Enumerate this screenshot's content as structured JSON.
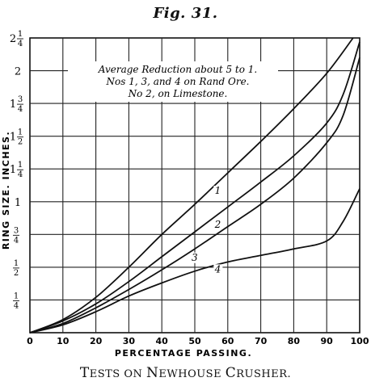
{
  "figure": {
    "title": "Fig. 31.",
    "caption": "Tests on Newhouse Crusher.",
    "caption_parts": [
      {
        "cap": "T",
        "rest": "ESTS"
      },
      {
        "cap": "",
        "rest": " ON "
      },
      {
        "cap": "N",
        "rest": "EWHOUSE"
      },
      {
        "cap": "",
        "rest": " "
      },
      {
        "cap": "C",
        "rest": "RUSHER"
      },
      {
        "cap": "",
        "rest": "."
      }
    ]
  },
  "chart_data": {
    "type": "line",
    "title": "Fig. 31.",
    "xlabel": "PERCENTAGE PASSING.",
    "ylabel": "RING SIZE. INCHES.",
    "xlim": [
      0,
      100
    ],
    "ylim": [
      0,
      2.25
    ],
    "grid": true,
    "x_ticks": [
      "0",
      "10",
      "20",
      "30",
      "40",
      "50",
      "60",
      "70",
      "80",
      "90",
      "100"
    ],
    "y_ticks": [
      {
        "value": 0.25,
        "whole": "",
        "frac_num": "1",
        "frac_den": "4"
      },
      {
        "value": 0.5,
        "whole": "",
        "frac_num": "1",
        "frac_den": "2"
      },
      {
        "value": 0.75,
        "whole": "",
        "frac_num": "3",
        "frac_den": "4"
      },
      {
        "value": 1.0,
        "whole": "1",
        "frac_num": "",
        "frac_den": ""
      },
      {
        "value": 1.25,
        "whole": "1",
        "frac_num": "1",
        "frac_den": "4"
      },
      {
        "value": 1.5,
        "whole": "1",
        "frac_num": "1",
        "frac_den": "2"
      },
      {
        "value": 1.75,
        "whole": "1",
        "frac_num": "3",
        "frac_den": "4"
      },
      {
        "value": 2.0,
        "whole": "2",
        "frac_num": "",
        "frac_den": ""
      },
      {
        "value": 2.25,
        "whole": "2",
        "frac_num": "1",
        "frac_den": "4"
      }
    ],
    "annotation": [
      "Average Reduction about 5 to 1.",
      "Nos 1, 3, and 4 on Rand Ore.",
      "No 2, on Limestone."
    ],
    "series": [
      {
        "name": "1",
        "label_at": [
          55,
          1.06
        ],
        "x": [
          0,
          10,
          20,
          30,
          40,
          50,
          60,
          70,
          80,
          90,
          98
        ],
        "y": [
          0,
          0.1,
          0.27,
          0.5,
          0.75,
          0.98,
          1.22,
          1.46,
          1.71,
          1.98,
          2.25
        ]
      },
      {
        "name": "2",
        "label_at": [
          55,
          0.8
        ],
        "x": [
          0,
          10,
          20,
          30,
          40,
          50,
          60,
          70,
          80,
          90,
          95,
          100
        ],
        "y": [
          0,
          0.09,
          0.22,
          0.39,
          0.58,
          0.77,
          0.96,
          1.15,
          1.35,
          1.6,
          1.82,
          2.22
        ]
      },
      {
        "name": "3",
        "label_at": [
          48,
          0.55
        ],
        "x": [
          0,
          10,
          20,
          30,
          40,
          50,
          60,
          70,
          80,
          90,
          95,
          100
        ],
        "y": [
          0,
          0.07,
          0.19,
          0.33,
          0.48,
          0.64,
          0.81,
          0.98,
          1.18,
          1.45,
          1.66,
          2.1
        ]
      },
      {
        "name": "4",
        "label_at": [
          55,
          0.46
        ],
        "x": [
          0,
          10,
          20,
          30,
          40,
          50,
          60,
          70,
          80,
          90,
          95,
          100
        ],
        "y": [
          0,
          0.06,
          0.16,
          0.28,
          0.38,
          0.47,
          0.54,
          0.59,
          0.64,
          0.7,
          0.85,
          1.1
        ]
      }
    ]
  }
}
